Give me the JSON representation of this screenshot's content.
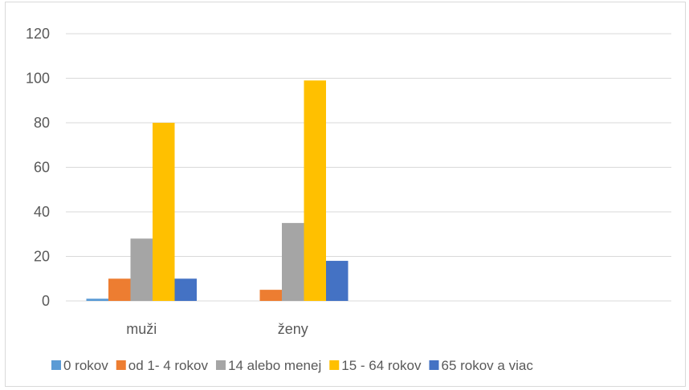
{
  "chart_data": {
    "type": "bar",
    "title": "",
    "xlabel": "",
    "ylabel": "",
    "categories": [
      "muži",
      "ženy",
      "",
      ""
    ],
    "series": [
      {
        "name": "0 rokov",
        "color": "#5b9bd5",
        "values": [
          1,
          0,
          null,
          null
        ]
      },
      {
        "name": "od 1- 4 rokov",
        "color": "#ed7d31",
        "values": [
          10,
          5,
          null,
          null
        ]
      },
      {
        "name": "14 alebo menej",
        "color": "#a5a5a5",
        "values": [
          28,
          35,
          null,
          null
        ]
      },
      {
        "name": "15 - 64 rokov",
        "color": "#ffc000",
        "values": [
          80,
          99,
          null,
          null
        ]
      },
      {
        "name": "65 rokov a viac",
        "color": "#4472c4",
        "values": [
          10,
          18,
          null,
          null
        ]
      }
    ],
    "ylim": [
      0,
      120
    ],
    "yticks": [
      0,
      20,
      40,
      60,
      80,
      100,
      120
    ],
    "grid": true,
    "legend_position": "bottom"
  }
}
